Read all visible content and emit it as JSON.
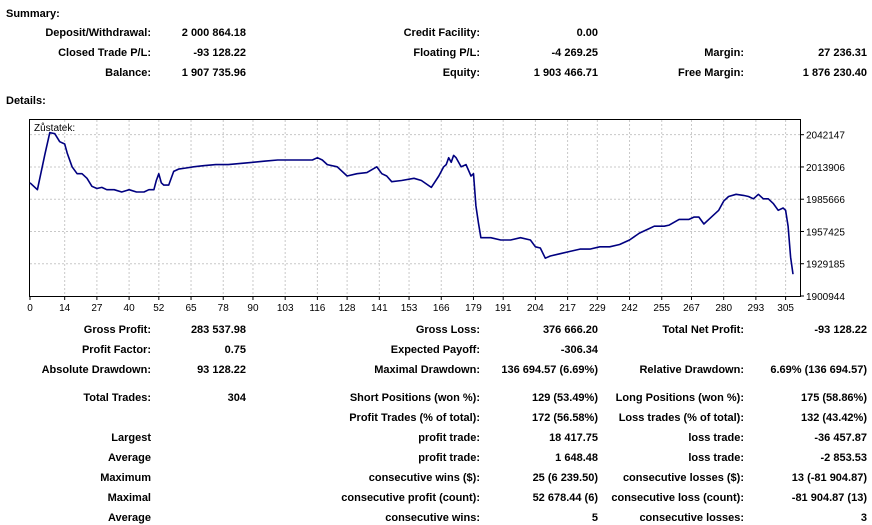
{
  "summary": {
    "title": "Summary:",
    "deposit_label": "Deposit/Withdrawal:",
    "deposit_value": "2 000 864.18",
    "credit_label": "Credit Facility:",
    "credit_value": "0.00",
    "closed_pl_label": "Closed Trade P/L:",
    "closed_pl_value": "-93 128.22",
    "floating_pl_label": "Floating P/L:",
    "floating_pl_value": "-4 269.25",
    "margin_label": "Margin:",
    "margin_value": "27 236.31",
    "balance_label": "Balance:",
    "balance_value": "1 907 735.96",
    "equity_label": "Equity:",
    "equity_value": "1 903 466.71",
    "free_margin_label": "Free Margin:",
    "free_margin_value": "1 876 230.40"
  },
  "details_title": "Details:",
  "chart_data": {
    "type": "line",
    "title": "Zůstatek:",
    "x_ticks": [
      "0",
      "14",
      "27",
      "40",
      "52",
      "65",
      "78",
      "90",
      "103",
      "116",
      "128",
      "141",
      "153",
      "166",
      "179",
      "191",
      "204",
      "217",
      "229",
      "242",
      "255",
      "267",
      "280",
      "293",
      "305"
    ],
    "y_ticks": [
      "2042147",
      "2013906",
      "1985666",
      "1957425",
      "1929185",
      "1900944"
    ],
    "xlim": [
      0,
      310
    ],
    "ylim": [
      1900944,
      2055000
    ],
    "grid": true,
    "line_color": "#000080",
    "x": [
      0,
      3,
      6,
      8,
      10,
      12,
      14,
      15,
      17,
      19,
      21,
      23,
      25,
      27,
      29,
      31,
      34,
      37,
      40,
      43,
      46,
      48,
      50,
      51,
      52,
      53,
      54,
      56,
      58,
      60,
      63,
      66,
      70,
      75,
      80,
      85,
      90,
      95,
      100,
      105,
      110,
      114,
      116,
      118,
      120,
      124,
      128,
      132,
      136,
      140,
      142,
      144,
      146,
      150,
      155,
      158,
      162,
      165,
      167,
      168,
      169,
      170,
      171,
      172,
      174,
      176,
      178,
      179,
      180,
      181,
      182,
      186,
      190,
      194,
      198,
      202,
      204,
      206,
      208,
      210,
      214,
      218,
      222,
      226,
      230,
      234,
      238,
      242,
      246,
      250,
      252,
      254,
      256,
      258,
      262,
      266,
      268,
      270,
      272,
      274,
      276,
      278,
      280,
      282,
      285,
      288,
      290,
      292,
      294,
      296,
      298,
      300,
      302,
      304,
      305,
      306,
      307,
      308
    ],
    "y": [
      2000000,
      1994000,
      2025000,
      2044000,
      2043000,
      2036000,
      2034000,
      2026000,
      2014000,
      2008000,
      2008000,
      2004000,
      1997000,
      1995000,
      1996000,
      1994000,
      1994000,
      1992000,
      1994000,
      1992000,
      1992000,
      1994000,
      1994000,
      2002000,
      2008000,
      2000000,
      1998000,
      1998000,
      2010000,
      2012000,
      2013000,
      2014000,
      2015000,
      2016000,
      2016000,
      2017000,
      2018000,
      2019000,
      2020000,
      2020000,
      2020000,
      2020000,
      2022000,
      2020000,
      2016000,
      2014000,
      2006000,
      2008000,
      2009000,
      2014000,
      2008000,
      2006000,
      2001000,
      2002000,
      2004000,
      2002000,
      1996000,
      2006000,
      2014000,
      2016000,
      2022000,
      2018000,
      2024000,
      2022000,
      2014000,
      2016000,
      2006000,
      2008000,
      1980000,
      1965000,
      1952000,
      1952000,
      1950000,
      1950000,
      1952000,
      1950000,
      1944000,
      1943000,
      1934000,
      1936000,
      1938000,
      1940000,
      1942000,
      1942000,
      1944000,
      1944000,
      1946000,
      1950000,
      1956000,
      1960000,
      1962000,
      1962000,
      1962000,
      1963000,
      1968000,
      1968000,
      1970000,
      1970000,
      1964000,
      1968000,
      1972000,
      1976000,
      1984000,
      1988000,
      1990000,
      1989000,
      1988000,
      1986000,
      1990000,
      1986000,
      1986000,
      1982000,
      1976000,
      1978000,
      1976000,
      1962000,
      1935000,
      1920000
    ]
  },
  "stats": {
    "gross_profit_label": "Gross Profit:",
    "gross_profit_value": "283 537.98",
    "gross_loss_label": "Gross Loss:",
    "gross_loss_value": "376 666.20",
    "total_net_label": "Total Net Profit:",
    "total_net_value": "-93 128.22",
    "profit_factor_label": "Profit Factor:",
    "profit_factor_value": "0.75",
    "expected_payoff_label": "Expected Payoff:",
    "expected_payoff_value": "-306.34",
    "abs_dd_label": "Absolute Drawdown:",
    "abs_dd_value": "93 128.22",
    "max_dd_label": "Maximal Drawdown:",
    "max_dd_value": "136 694.57 (6.69%)",
    "rel_dd_label": "Relative Drawdown:",
    "rel_dd_value": "6.69% (136 694.57)",
    "total_trades_label": "Total Trades:",
    "total_trades_value": "304",
    "short_label": "Short Positions (won %):",
    "short_value": "129 (53.49%)",
    "long_label": "Long Positions (won %):",
    "long_value": "175 (58.86%)",
    "profit_trades_label": "Profit Trades (% of total):",
    "profit_trades_value": "172 (56.58%)",
    "loss_trades_label": "Loss trades (% of total):",
    "loss_trades_value": "132 (43.42%)",
    "largest_label": "Largest",
    "largest_profit_label": "profit trade:",
    "largest_profit_value": "18 417.75",
    "largest_loss_label": "loss trade:",
    "largest_loss_value": "-36 457.87",
    "average_label": "Average",
    "average_profit_label": "profit trade:",
    "average_profit_value": "1 648.48",
    "average_loss_label": "loss trade:",
    "average_loss_value": "-2 853.53",
    "maximum_label": "Maximum",
    "max_wins_label": "consecutive wins ($):",
    "max_wins_value": "25 (6 239.50)",
    "max_losses_label": "consecutive losses ($):",
    "max_losses_value": "13 (-81 904.87)",
    "maximal_label": "Maximal",
    "maximal_profit_label": "consecutive profit (count):",
    "maximal_profit_value": "52 678.44 (6)",
    "maximal_loss_label": "consecutive loss (count):",
    "maximal_loss_value": "-81 904.87 (13)",
    "average2_label": "Average",
    "avg_wins_label": "consecutive wins:",
    "avg_wins_value": "5",
    "avg_losses_label": "consecutive losses:",
    "avg_losses_value": "3"
  }
}
